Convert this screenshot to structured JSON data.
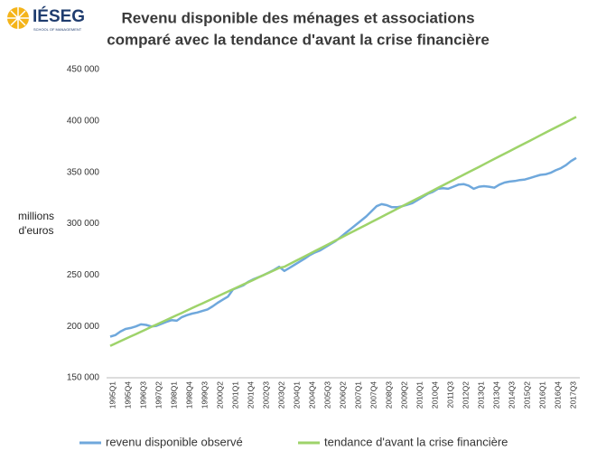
{
  "logo": {
    "name": "IÉSEG",
    "tagline": "SCHOOL OF MANAGEMENT"
  },
  "chart_data": {
    "type": "line",
    "title": [
      "Revenu disponible des ménages et associations",
      "comparé avec la tendance d'avant la crise financière"
    ],
    "ylabel": [
      "millions",
      "d'euros"
    ],
    "categories": [
      "1995Q1",
      null,
      null,
      "1995Q4",
      null,
      null,
      "1996Q3",
      null,
      null,
      "1997Q2",
      null,
      null,
      "1998Q1",
      null,
      null,
      "1998Q4",
      null,
      null,
      "1999Q3",
      null,
      null,
      "2000Q2",
      null,
      null,
      "2001Q1",
      null,
      null,
      "2001Q4",
      null,
      null,
      "2002Q3",
      null,
      null,
      "2003Q2",
      null,
      null,
      "2004Q1",
      null,
      null,
      "2004Q4",
      null,
      null,
      "2005Q3",
      null,
      null,
      "2006Q2",
      null,
      null,
      "2007Q1",
      null,
      null,
      "2007Q4",
      null,
      null,
      "2008Q3",
      null,
      null,
      "2009Q2",
      null,
      null,
      "2010Q1",
      null,
      null,
      "2010Q4",
      null,
      null,
      "2011Q3",
      null,
      null,
      "2012Q2",
      null,
      null,
      "2013Q1",
      null,
      null,
      "2013Q4",
      null,
      null,
      "2014Q3",
      null,
      null,
      "2015Q2",
      null,
      null,
      "2016Q1",
      null,
      null,
      "2016Q4",
      null,
      null,
      "2017Q3",
      null
    ],
    "series": [
      {
        "name": "revenu disponible observé",
        "color": "#6fa8dc",
        "values": [
          190000,
          191500,
          195000,
          197500,
          198500,
          200000,
          202000,
          201500,
          200000,
          200500,
          202500,
          204500,
          206000,
          205500,
          209000,
          211000,
          212500,
          213500,
          215000,
          216500,
          219500,
          223000,
          226000,
          229000,
          236000,
          238000,
          240000,
          243500,
          246000,
          248000,
          250000,
          252500,
          255000,
          258000,
          254000,
          257000,
          260000,
          263000,
          266000,
          269500,
          272000,
          274000,
          277000,
          280000,
          283000,
          287000,
          291000,
          295000,
          299000,
          303000,
          307000,
          312000,
          317000,
          319000,
          318000,
          316000,
          316000,
          317000,
          318500,
          320000,
          323000,
          326000,
          329000,
          331000,
          334000,
          334500,
          334000,
          336000,
          338000,
          338500,
          337000,
          334000,
          336000,
          336500,
          336000,
          335000,
          338000,
          340000,
          341000,
          341500,
          342500,
          343000,
          344500,
          346000,
          347500,
          348000,
          349500,
          352000,
          354000,
          357000,
          361000,
          364000
        ]
      },
      {
        "name": "tendance d'avant la crise financière",
        "color": "#9ed36a",
        "values": [
          181000,
          183300,
          185600,
          187900,
          190200,
          192500,
          194800,
          197100,
          199400,
          201700,
          204000,
          206300,
          208600,
          210900,
          213200,
          215500,
          217800,
          220100,
          222400,
          224700,
          227000,
          229300,
          231600,
          233900,
          236200,
          238500,
          240800,
          243100,
          245400,
          247700,
          250000,
          252300,
          254600,
          256900,
          258000,
          260560,
          263120,
          265680,
          268240,
          270800,
          273360,
          275920,
          278480,
          281040,
          283600,
          286160,
          288720,
          291280,
          293840,
          296400,
          298960,
          301520,
          304080,
          306640,
          309200,
          311760,
          314320,
          316880,
          319440,
          322000,
          324560,
          327120,
          329680,
          332240,
          334800,
          337360,
          339920,
          342480,
          345040,
          347600,
          350160,
          352720,
          355280,
          357840,
          360400,
          362960,
          365520,
          368080,
          370640,
          373200,
          375760,
          378320,
          380880,
          383440,
          386000,
          388560,
          391120,
          393680,
          396240,
          398800,
          401360,
          403920
        ]
      }
    ],
    "ylim": [
      150000,
      450000
    ],
    "yticks": [
      {
        "value": 150000,
        "label": "150 000"
      },
      {
        "value": 200000,
        "label": "200 000"
      },
      {
        "value": 250000,
        "label": "250 000"
      },
      {
        "value": 300000,
        "label": "300 000"
      },
      {
        "value": 350000,
        "label": "350 000"
      },
      {
        "value": 400000,
        "label": "400 000"
      },
      {
        "value": 450000,
        "label": "450 000"
      }
    ],
    "grid": false
  }
}
